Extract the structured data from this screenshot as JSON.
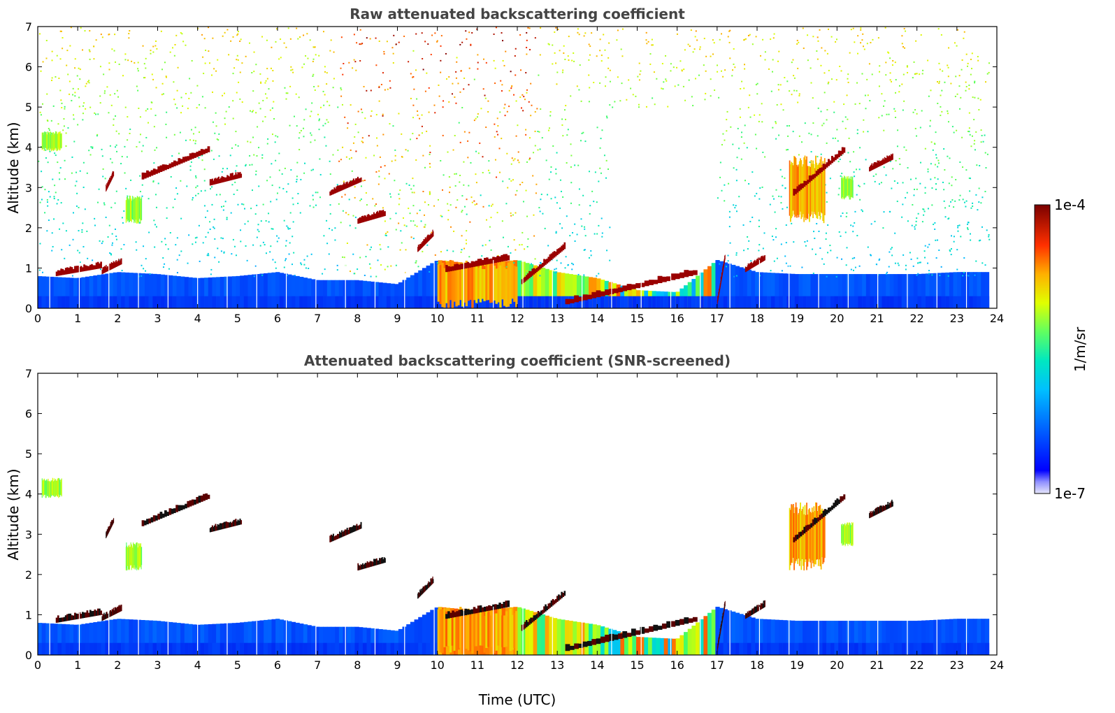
{
  "chart_data": [
    {
      "type": "heatmap",
      "title": "Raw attenuated backscattering coefficient",
      "xlabel": "",
      "ylabel": "Altitude (km)",
      "xlim": [
        0,
        24
      ],
      "ylim": [
        0,
        7
      ],
      "xticks": [
        "0",
        "1",
        "2",
        "3",
        "4",
        "5",
        "6",
        "7",
        "8",
        "9",
        "10",
        "11",
        "12",
        "13",
        "14",
        "15",
        "16",
        "17",
        "18",
        "19",
        "20",
        "21",
        "22",
        "23",
        "24"
      ],
      "yticks": [
        "0",
        "1",
        "2",
        "3",
        "4",
        "5",
        "6",
        "7"
      ],
      "boundary_layer_top_km": [
        [
          0,
          0.8
        ],
        [
          1,
          0.75
        ],
        [
          2,
          0.9
        ],
        [
          3,
          0.85
        ],
        [
          4,
          0.75
        ],
        [
          5,
          0.8
        ],
        [
          6,
          0.9
        ],
        [
          7,
          0.7
        ],
        [
          8,
          0.7
        ],
        [
          9,
          0.6
        ],
        [
          10,
          1.2
        ],
        [
          11,
          1.1
        ],
        [
          12,
          1.2
        ],
        [
          13,
          0.9
        ],
        [
          14,
          0.75
        ],
        [
          15,
          0.45
        ],
        [
          16,
          0.4
        ],
        [
          17,
          1.2
        ],
        [
          18,
          0.9
        ],
        [
          19,
          0.85
        ],
        [
          20,
          0.85
        ],
        [
          21,
          0.85
        ],
        [
          22,
          0.85
        ],
        [
          23,
          0.9
        ],
        [
          23.8,
          0.9
        ]
      ],
      "cloud_layers": [
        {
          "x": [
            0.45,
            1.6
          ],
          "y": [
            0.8,
            1.0
          ]
        },
        {
          "x": [
            1.6,
            2.1
          ],
          "y": [
            0.85,
            1.1
          ]
        },
        {
          "x": [
            1.7,
            1.9
          ],
          "y": [
            2.9,
            3.3
          ]
        },
        {
          "x": [
            2.6,
            4.3
          ],
          "y": [
            3.2,
            3.9
          ]
        },
        {
          "x": [
            4.3,
            5.1
          ],
          "y": [
            3.05,
            3.25
          ]
        },
        {
          "x": [
            7.3,
            8.1
          ],
          "y": [
            2.8,
            3.15
          ]
        },
        {
          "x": [
            8.0,
            8.7
          ],
          "y": [
            2.1,
            2.3
          ]
        },
        {
          "x": [
            9.5,
            9.9
          ],
          "y": [
            1.4,
            1.8
          ]
        },
        {
          "x": [
            10.2,
            11.8
          ],
          "y": [
            0.9,
            1.2
          ]
        },
        {
          "x": [
            12.1,
            13.2
          ],
          "y": [
            0.6,
            1.5
          ]
        },
        {
          "x": [
            13.2,
            16.5
          ],
          "y": [
            0.1,
            0.85
          ]
        },
        {
          "x": [
            17.0,
            17.2
          ],
          "y": [
            0.1,
            1.25
          ]
        },
        {
          "x": [
            17.7,
            18.2
          ],
          "y": [
            0.9,
            1.2
          ]
        },
        {
          "x": [
            18.9,
            20.2
          ],
          "y": [
            2.8,
            3.9
          ]
        },
        {
          "x": [
            20.8,
            21.4
          ],
          "y": [
            3.4,
            3.7
          ]
        }
      ],
      "aerosol_plumes": [
        {
          "x": [
            10.0,
            12.0
          ],
          "y": [
            0.0,
            1.2
          ],
          "level": "high"
        },
        {
          "x": [
            18.8,
            19.7
          ],
          "y": [
            2.1,
            3.8
          ],
          "level": "high"
        },
        {
          "x": [
            20.1,
            20.4
          ],
          "y": [
            2.7,
            3.3
          ],
          "level": "medium"
        },
        {
          "x": [
            0.1,
            0.6
          ],
          "y": [
            3.9,
            4.4
          ],
          "level": "medium"
        },
        {
          "x": [
            2.2,
            2.6
          ],
          "y": [
            2.1,
            2.8
          ],
          "level": "medium"
        }
      ],
      "noise": "high-altitude noise, strongest in daytime (8-12 UTC)"
    },
    {
      "type": "heatmap",
      "title": "Attenuated backscattering coefficient (SNR-screened)",
      "xlabel": "Time (UTC)",
      "ylabel": "Altitude (km)",
      "xlim": [
        0,
        24
      ],
      "ylim": [
        0,
        7
      ],
      "xticks": [
        "0",
        "1",
        "2",
        "3",
        "4",
        "5",
        "6",
        "7",
        "8",
        "9",
        "10",
        "11",
        "12",
        "13",
        "14",
        "15",
        "16",
        "17",
        "18",
        "19",
        "20",
        "21",
        "22",
        "23",
        "24"
      ],
      "yticks": [
        "0",
        "1",
        "2",
        "3",
        "4",
        "5",
        "6",
        "7"
      ],
      "screened": true,
      "same_features_as": "raw panel, noise removed"
    }
  ],
  "colorbar": {
    "min_label": "1e-7",
    "max_label": "1e-4",
    "label": "1/m/sr",
    "colormap": "jet",
    "colors": [
      "#e0e0f8",
      "#0000ff",
      "#0080ff",
      "#00e0e0",
      "#40ff80",
      "#e0ff20",
      "#ffa000",
      "#ff2000",
      "#800000"
    ]
  }
}
